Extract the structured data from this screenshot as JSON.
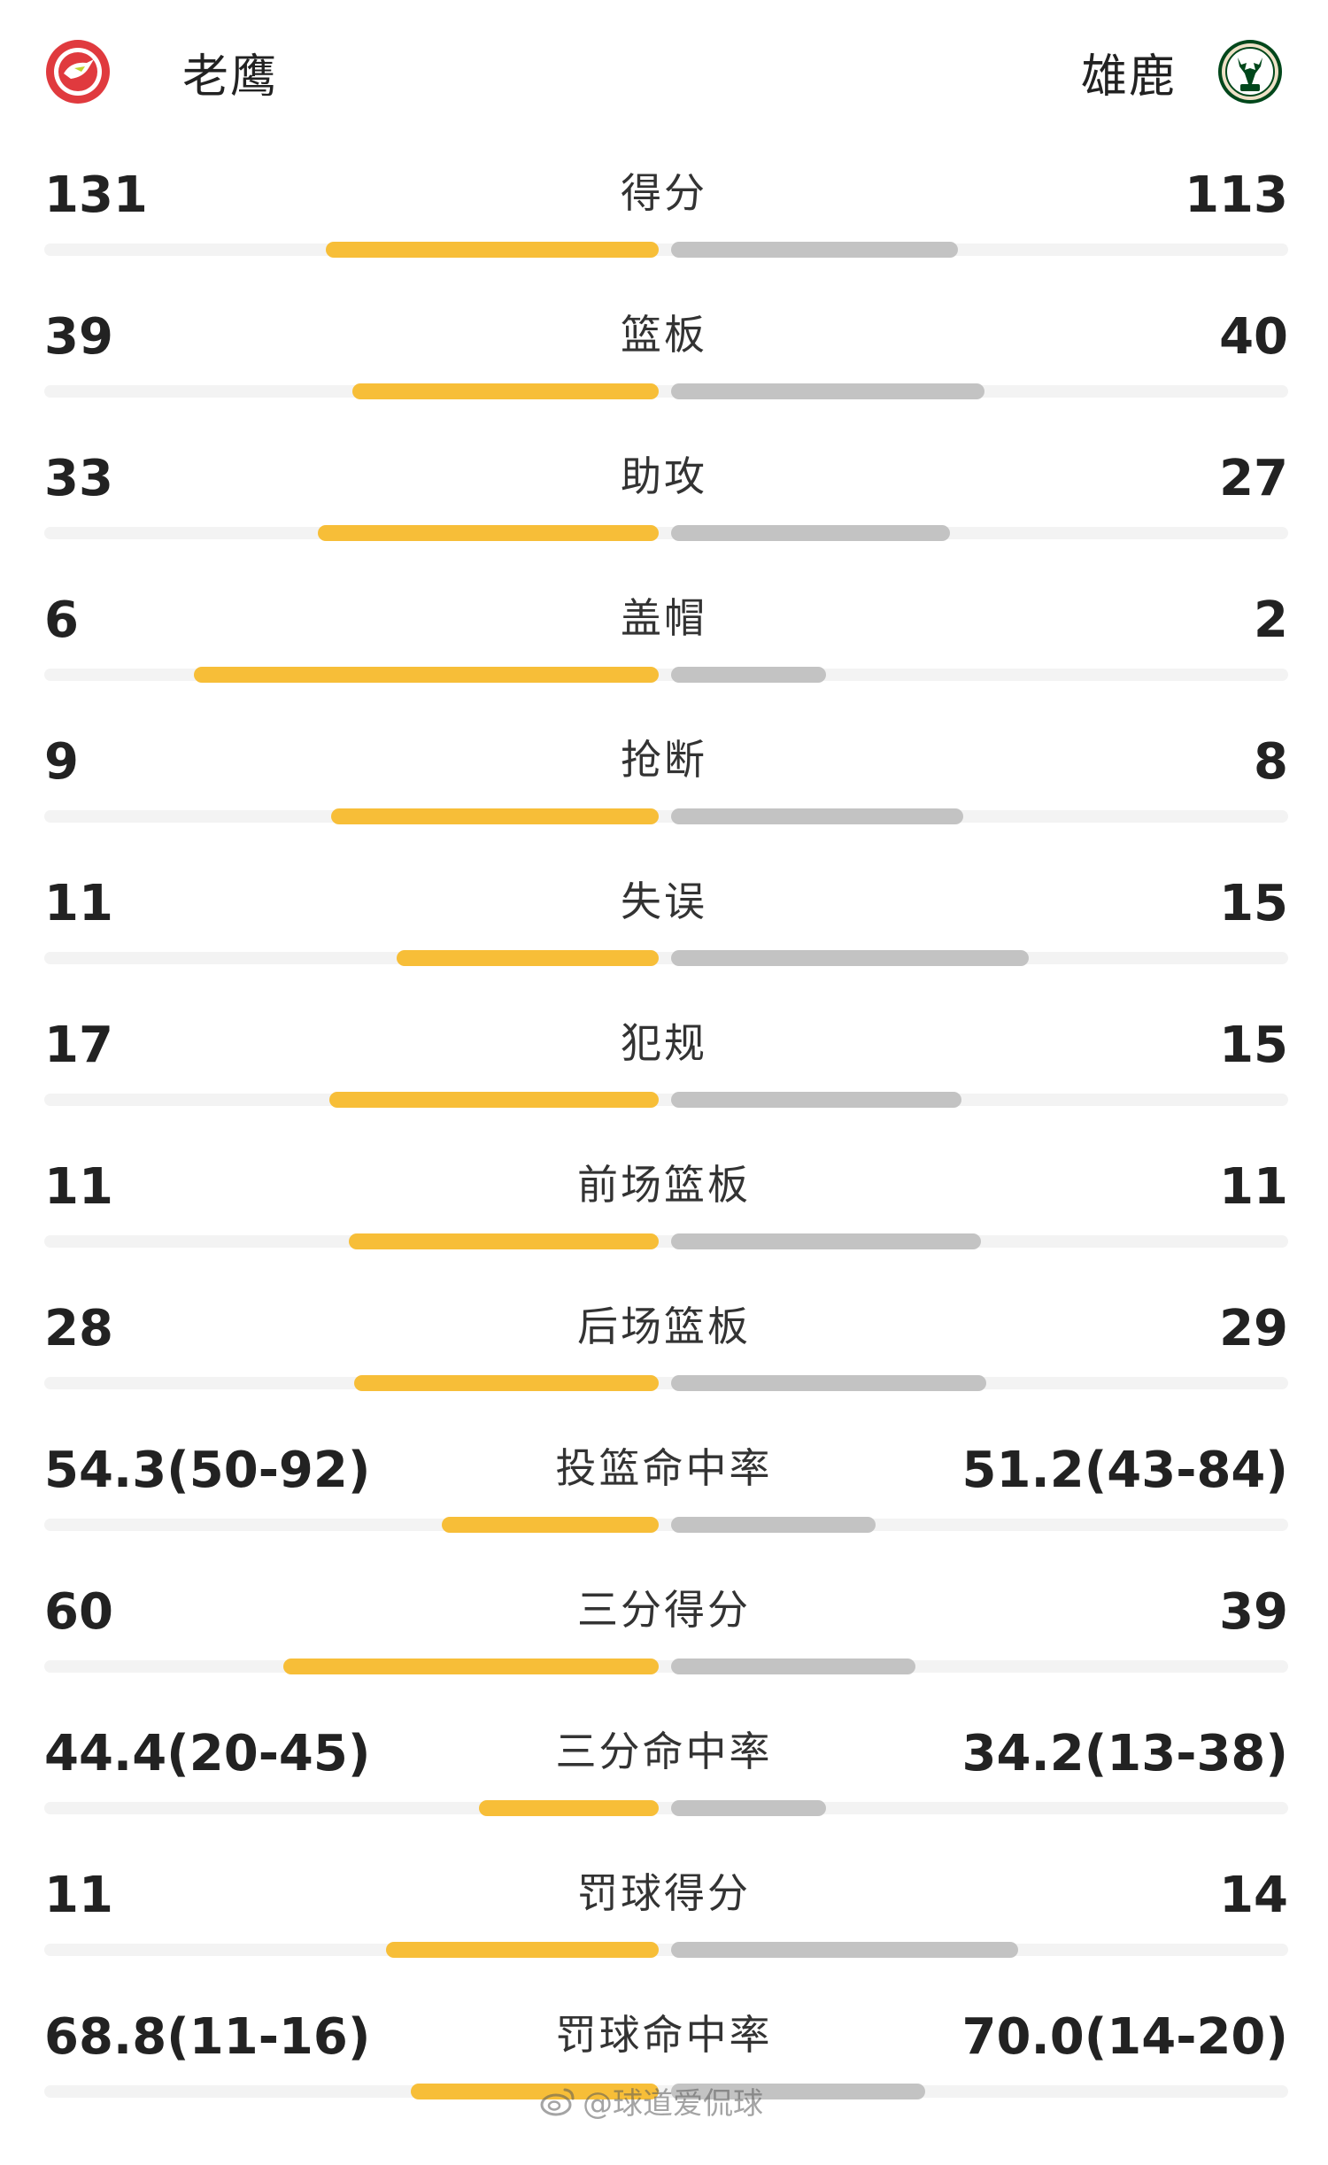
{
  "header": {
    "left_team": {
      "name": "老鹰",
      "logo": "hawks-logo-icon",
      "color": "#e03a3e"
    },
    "right_team": {
      "name": "雄鹿",
      "logo": "bucks-logo-icon",
      "color": "#00471b"
    }
  },
  "colors": {
    "left_bar": "#f7be38",
    "right_bar": "#c3c3c3",
    "track": "#f3f3f3"
  },
  "stats": [
    {
      "label": "得分",
      "left": "131",
      "right": "113",
      "left_share": 0.537,
      "right_share": 0.463
    },
    {
      "label": "篮板",
      "left": "39",
      "right": "40",
      "left_share": 0.494,
      "right_share": 0.506
    },
    {
      "label": "助攻",
      "left": "33",
      "right": "27",
      "left_share": 0.55,
      "right_share": 0.45
    },
    {
      "label": "盖帽",
      "left": "6",
      "right": "2",
      "left_share": 0.75,
      "right_share": 0.25
    },
    {
      "label": "抢断",
      "left": "9",
      "right": "8",
      "left_share": 0.529,
      "right_share": 0.471
    },
    {
      "label": "失误",
      "left": "11",
      "right": "15",
      "left_share": 0.423,
      "right_share": 0.577
    },
    {
      "label": "犯规",
      "left": "17",
      "right": "15",
      "left_share": 0.531,
      "right_share": 0.469
    },
    {
      "label": "前场篮板",
      "left": "11",
      "right": "11",
      "left_share": 0.5,
      "right_share": 0.5
    },
    {
      "label": "后场篮板",
      "left": "28",
      "right": "29",
      "left_share": 0.491,
      "right_share": 0.509
    },
    {
      "label": "投篮命中率",
      "left": "54.3(50-92)",
      "right": "51.2(43-84)",
      "left_share": 0.35,
      "right_share": 0.33
    },
    {
      "label": "三分得分",
      "left": "60",
      "right": "39",
      "left_share": 0.606,
      "right_share": 0.394
    },
    {
      "label": "三分命中率",
      "left": "44.4(20-45)",
      "right": "34.2(13-38)",
      "left_share": 0.29,
      "right_share": 0.25
    },
    {
      "label": "罚球得分",
      "left": "11",
      "right": "14",
      "left_share": 0.44,
      "right_share": 0.56
    },
    {
      "label": "罚球命中率",
      "left": "68.8(11-16)",
      "right": "70.0(14-20)",
      "left_share": 0.4,
      "right_share": 0.41
    }
  ],
  "watermark": {
    "text": "@球道爱侃球",
    "icon": "weibo-icon"
  }
}
